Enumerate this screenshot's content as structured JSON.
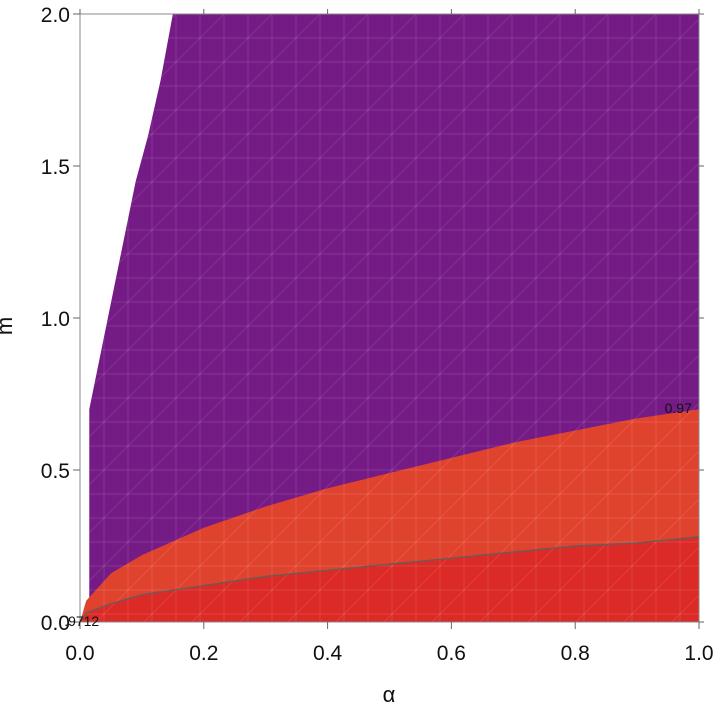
{
  "chart_data": {
    "type": "region-contour",
    "xlabel": "α",
    "ylabel": "m",
    "xlim": [
      0.0,
      1.0
    ],
    "ylim": [
      0.0,
      2.0
    ],
    "x_ticks": [
      {
        "value": 0.0,
        "label": "0.0"
      },
      {
        "value": 0.2,
        "label": "0.2"
      },
      {
        "value": 0.4,
        "label": "0.4"
      },
      {
        "value": 0.6,
        "label": "0.6"
      },
      {
        "value": 0.8,
        "label": "0.8"
      },
      {
        "value": 1.0,
        "label": "1.0"
      }
    ],
    "y_ticks": [
      {
        "value": 0.0,
        "label": "0.0"
      },
      {
        "value": 0.5,
        "label": "0.5"
      },
      {
        "value": 1.0,
        "label": "1.0"
      },
      {
        "value": 1.5,
        "label": "1.5"
      },
      {
        "value": 2.0,
        "label": "2.0"
      }
    ],
    "colors": {
      "purple_region": "#751b85",
      "orange_region": "#e0432d",
      "red_region": "#dc2a26",
      "contour_line": "#6b5a5a",
      "grid_overlay": "#ffffff"
    },
    "regions": [
      {
        "key": "purple_region",
        "description": "upper region",
        "boundary_points": [
          [
            0.015,
            0.05
          ],
          [
            0.015,
            0.7
          ],
          [
            0.03,
            0.85
          ],
          [
            0.05,
            1.05
          ],
          [
            0.07,
            1.25
          ],
          [
            0.09,
            1.45
          ],
          [
            0.11,
            1.6
          ],
          [
            0.13,
            1.78
          ],
          [
            0.15,
            2.0
          ],
          [
            1.0,
            2.0
          ],
          [
            1.0,
            0.7
          ]
        ]
      },
      {
        "key": "orange_region",
        "description": "middle region between curves",
        "upper_curve": [
          [
            0.0,
            0.0
          ],
          [
            0.01,
            0.07
          ],
          [
            0.05,
            0.16
          ],
          [
            0.1,
            0.22
          ],
          [
            0.2,
            0.31
          ],
          [
            0.3,
            0.38
          ],
          [
            0.4,
            0.44
          ],
          [
            0.5,
            0.49
          ],
          [
            0.6,
            0.54
          ],
          [
            0.7,
            0.59
          ],
          [
            0.8,
            0.63
          ],
          [
            0.9,
            0.67
          ],
          [
            1.0,
            0.7
          ]
        ]
      },
      {
        "key": "red_region",
        "description": "lower region",
        "upper_curve": [
          [
            0.0,
            0.0
          ],
          [
            0.01,
            0.03
          ],
          [
            0.05,
            0.06
          ],
          [
            0.1,
            0.09
          ],
          [
            0.2,
            0.12
          ],
          [
            0.3,
            0.15
          ],
          [
            0.4,
            0.17
          ],
          [
            0.5,
            0.19
          ],
          [
            0.6,
            0.21
          ],
          [
            0.7,
            0.23
          ],
          [
            0.8,
            0.25
          ],
          [
            0.9,
            0.26
          ],
          [
            1.0,
            0.28
          ]
        ]
      }
    ],
    "contour_labels": [
      {
        "text": "0.97",
        "x": 0.98,
        "y": 0.7
      },
      {
        "text": ".9712",
        "x": 0.01,
        "y": 0.0
      }
    ]
  }
}
